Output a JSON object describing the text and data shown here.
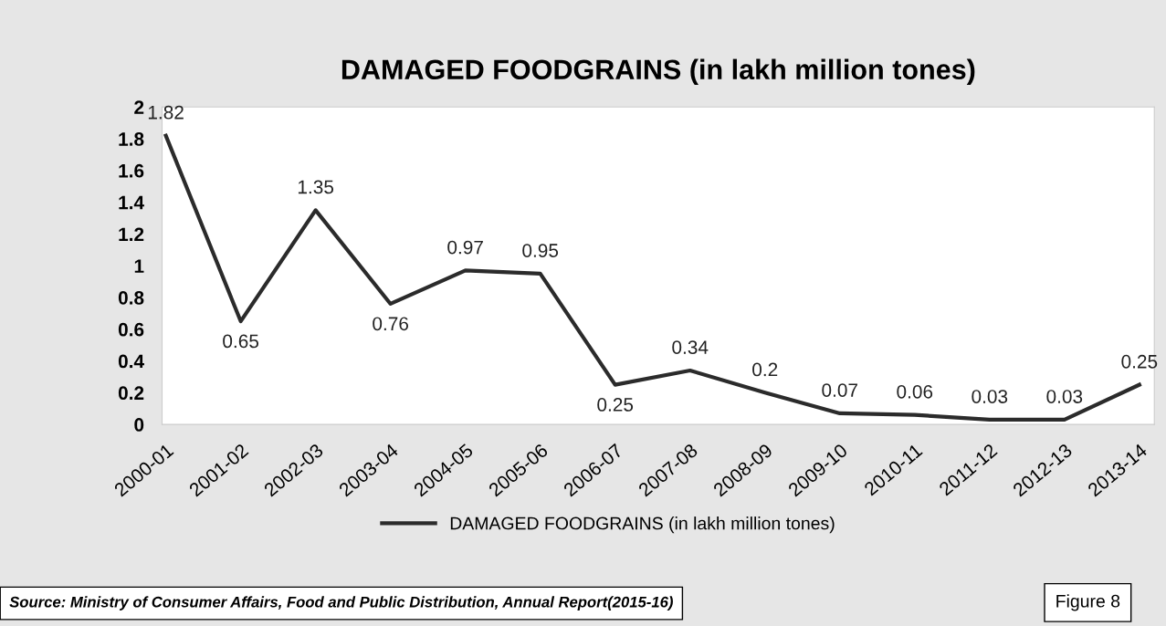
{
  "chart_data": {
    "type": "line",
    "title": "DAMAGED FOODGRAINS (in lakh million tones)",
    "categories": [
      "2000-01",
      "2001-02",
      "2002-03",
      "2003-04",
      "2004-05",
      "2005-06",
      "2006-07",
      "2007-08",
      "2008-09",
      "2009-10",
      "2010-11",
      "2011-12",
      "2012-13",
      "2013-14"
    ],
    "series": [
      {
        "name": "DAMAGED FOODGRAINS (in lakh million tones)",
        "color": "#2b2b2b",
        "values": [
          1.82,
          0.65,
          1.35,
          0.76,
          0.97,
          0.95,
          0.25,
          0.34,
          0.2,
          0.07,
          0.06,
          0.03,
          0.03,
          0.25
        ]
      }
    ],
    "ylim": [
      0,
      2
    ],
    "yticks": [
      0,
      0.2,
      0.4,
      0.6,
      0.8,
      1,
      1.2,
      1.4,
      1.6,
      1.8,
      2
    ],
    "data_labels": true,
    "grid": false,
    "legend": "bottom",
    "marker": "none",
    "line_style": "solid",
    "annotations": [
      "Source: Ministry of Consumer Affairs, Food and Public Distribution, Annual Report(2015-16)",
      "Figure 8"
    ]
  }
}
